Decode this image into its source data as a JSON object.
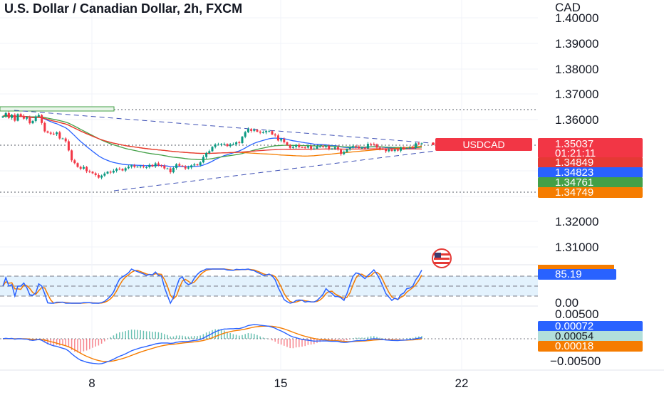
{
  "header": {
    "title": "U.S. Dollar / Canadian Dollar, 2h, FXCM",
    "currency": "CAD"
  },
  "price_axis": {
    "ticks": [
      "1.40000",
      "1.39000",
      "1.38000",
      "1.37000",
      "1.36000",
      "1.32000",
      "1.31000"
    ]
  },
  "x_axis": {
    "ticks": [
      "8",
      "15",
      "22"
    ]
  },
  "badges": {
    "symbol": "USDCAD",
    "price": "1.35037",
    "countdown": "01:21:11",
    "ma_red": "1.34849",
    "ma_blue": "1.34823",
    "ma_green": "1.34761",
    "ma_orange": "1.34749"
  },
  "stoch": {
    "value": "85.19",
    "axis_zero": "0.00"
  },
  "macd": {
    "axis_top": "0.00500",
    "axis_bottom": "−0.00500",
    "macd_value": "0.00072",
    "hist_value": "0.00054",
    "signal_value": "0.00018"
  },
  "colors": {
    "up": "#089981",
    "down": "#f23645",
    "blue_ma": "#2962ff",
    "orange_ma": "#f57c00",
    "green_ma": "#43a047",
    "red_ma": "#e53935",
    "stoch_band": "#e3f2fd"
  },
  "chart_data": {
    "type": "candlestick",
    "symbol": "USDCAD",
    "interval": "2h",
    "price_range": [
      1.3,
      1.405
    ],
    "close_series": [
      1.3612,
      1.3625,
      1.3606,
      1.3618,
      1.3595,
      1.3621,
      1.3614,
      1.3603,
      1.3609,
      1.3585,
      1.3594,
      1.3612,
      1.3617,
      1.3586,
      1.3553,
      1.3548,
      1.3544,
      1.3542,
      1.3549,
      1.3525,
      1.3525,
      1.3514,
      1.3478,
      1.3439,
      1.3428,
      1.3413,
      1.3406,
      1.3413,
      1.3396,
      1.3394,
      1.3388,
      1.3381,
      1.3371,
      1.3379,
      1.3387,
      1.3394,
      1.3391,
      1.3398,
      1.3406,
      1.3405,
      1.3399,
      1.3408,
      1.3414,
      1.3419,
      1.3413,
      1.3414,
      1.3415,
      1.3412,
      1.3412,
      1.3421,
      1.3415,
      1.3427,
      1.3419,
      1.3418,
      1.3407,
      1.3407,
      1.3392,
      1.3409,
      1.3424,
      1.3418,
      1.3415,
      1.3407,
      1.3411,
      1.3419,
      1.3423,
      1.342,
      1.3431,
      1.3452,
      1.3468,
      1.3475,
      1.3492,
      1.3501,
      1.3501,
      1.3503,
      1.3503,
      1.3495,
      1.3502,
      1.3502,
      1.351,
      1.3507,
      1.3532,
      1.355,
      1.3562,
      1.3555,
      1.3559,
      1.3552,
      1.3548,
      1.3549,
      1.3554,
      1.3554,
      1.3541,
      1.3537,
      1.3517,
      1.3523,
      1.351,
      1.3499,
      1.3488,
      1.3492,
      1.35,
      1.3491,
      1.349,
      1.3489,
      1.3495,
      1.3485,
      1.3485,
      1.3494,
      1.3495,
      1.3492,
      1.3496,
      1.3483,
      1.3485,
      1.3491,
      1.3481,
      1.3464,
      1.3472,
      1.3483,
      1.3489,
      1.3495,
      1.3493,
      1.3487,
      1.3488,
      1.3486,
      1.3504,
      1.3503,
      1.3502,
      1.3489,
      1.3484,
      1.3483,
      1.3475,
      1.3481,
      1.3476,
      1.3481,
      1.3477,
      1.3489,
      1.3485,
      1.3488,
      1.349,
      1.3489,
      1.3506,
      1.3503,
      1.3506
    ],
    "moving_averages": [
      {
        "color": "red",
        "last": 1.34849
      },
      {
        "color": "blue",
        "last": 1.34823
      },
      {
        "color": "green",
        "last": 1.34761
      },
      {
        "color": "orange",
        "last": 1.34749
      }
    ],
    "last_price": 1.35037,
    "stochastic": {
      "last": 85.19
    },
    "macd": {
      "macd": 0.00072,
      "histogram": 0.00054,
      "signal": 0.00018
    }
  }
}
